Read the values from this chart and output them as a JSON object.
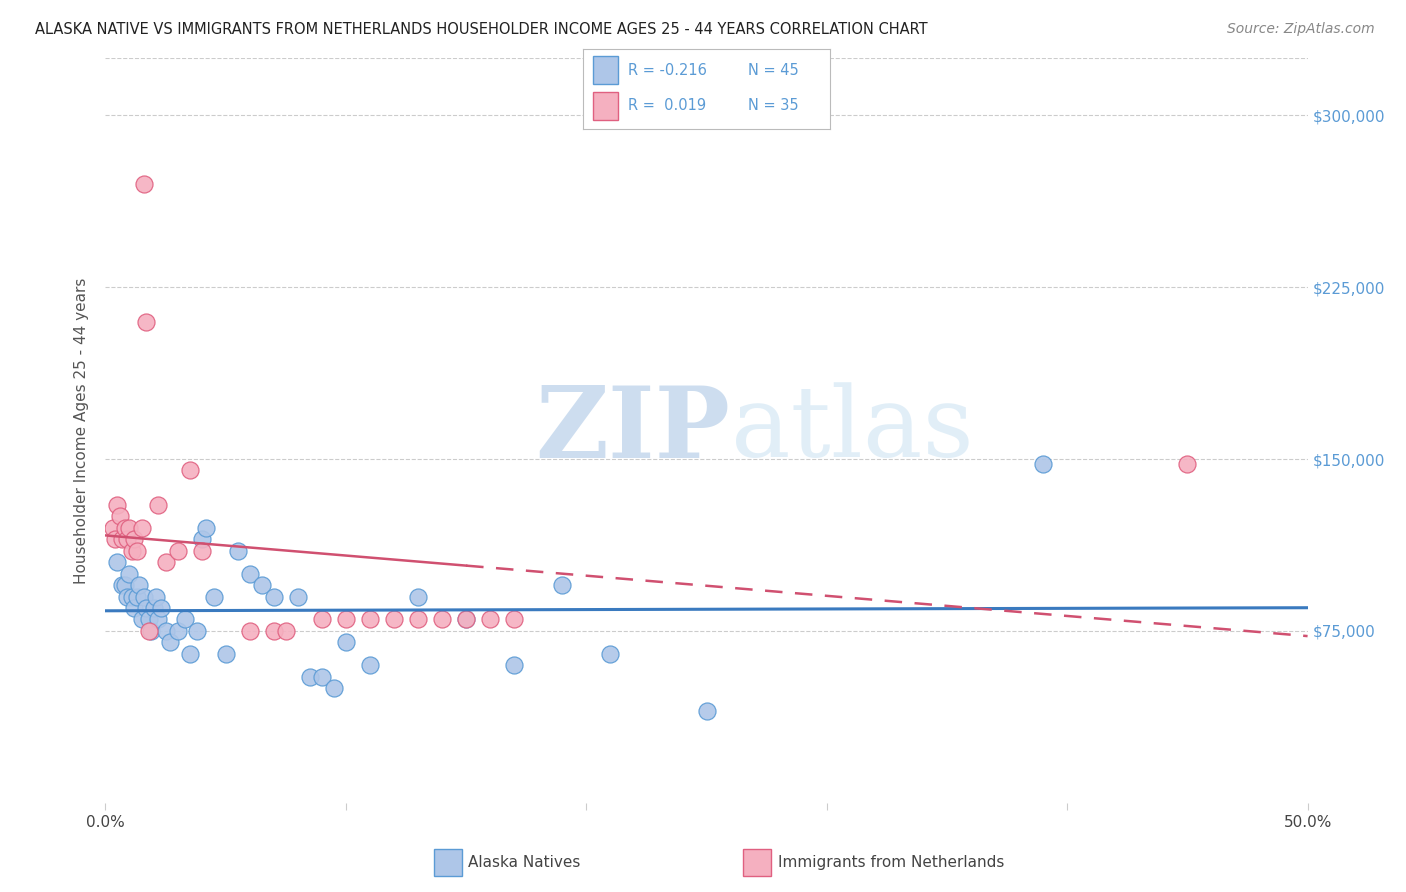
{
  "title": "ALASKA NATIVE VS IMMIGRANTS FROM NETHERLANDS HOUSEHOLDER INCOME AGES 25 - 44 YEARS CORRELATION CHART",
  "source": "Source: ZipAtlas.com",
  "ylabel": "Householder Income Ages 25 - 44 years",
  "xlim": [
    0.0,
    0.5
  ],
  "ylim": [
    0,
    325000
  ],
  "yticks": [
    75000,
    150000,
    225000,
    300000
  ],
  "ytick_labels": [
    "$75,000",
    "$150,000",
    "$225,000",
    "$300,000"
  ],
  "xtick_positions": [
    0.0,
    0.1,
    0.2,
    0.3,
    0.4,
    0.5
  ],
  "xtick_labels": [
    "0.0%",
    "",
    "",
    "",
    "",
    "50.0%"
  ],
  "bg_color": "#ffffff",
  "blue_face": "#aec6e8",
  "blue_edge": "#5b9bd5",
  "pink_face": "#f5b0c0",
  "pink_edge": "#e06080",
  "blue_line_color": "#3a7abf",
  "pink_line_color": "#d05070",
  "grid_color": "#cccccc",
  "alaska_x": [
    0.005,
    0.007,
    0.008,
    0.009,
    0.01,
    0.011,
    0.012,
    0.013,
    0.014,
    0.015,
    0.016,
    0.017,
    0.018,
    0.019,
    0.02,
    0.021,
    0.022,
    0.023,
    0.025,
    0.027,
    0.03,
    0.033,
    0.035,
    0.038,
    0.04,
    0.042,
    0.045,
    0.05,
    0.055,
    0.06,
    0.065,
    0.07,
    0.08,
    0.085,
    0.09,
    0.095,
    0.1,
    0.11,
    0.13,
    0.15,
    0.17,
    0.19,
    0.21,
    0.25,
    0.39
  ],
  "alaska_y": [
    105000,
    95000,
    95000,
    90000,
    100000,
    90000,
    85000,
    90000,
    95000,
    80000,
    90000,
    85000,
    80000,
    75000,
    85000,
    90000,
    80000,
    85000,
    75000,
    70000,
    75000,
    80000,
    65000,
    75000,
    115000,
    120000,
    90000,
    65000,
    110000,
    100000,
    95000,
    90000,
    90000,
    55000,
    55000,
    50000,
    70000,
    60000,
    90000,
    80000,
    60000,
    95000,
    65000,
    40000,
    148000
  ],
  "netherlands_x": [
    0.003,
    0.004,
    0.005,
    0.006,
    0.007,
    0.008,
    0.009,
    0.01,
    0.011,
    0.012,
    0.013,
    0.015,
    0.016,
    0.017,
    0.018,
    0.022,
    0.025,
    0.03,
    0.035,
    0.04,
    0.06,
    0.07,
    0.075,
    0.09,
    0.1,
    0.11,
    0.12,
    0.13,
    0.14,
    0.15,
    0.16,
    0.17,
    0.45
  ],
  "netherlands_y": [
    120000,
    115000,
    130000,
    125000,
    115000,
    120000,
    115000,
    120000,
    110000,
    115000,
    110000,
    120000,
    270000,
    210000,
    75000,
    130000,
    105000,
    110000,
    145000,
    110000,
    75000,
    75000,
    75000,
    80000,
    80000,
    80000,
    80000,
    80000,
    80000,
    80000,
    80000,
    80000,
    148000
  ]
}
